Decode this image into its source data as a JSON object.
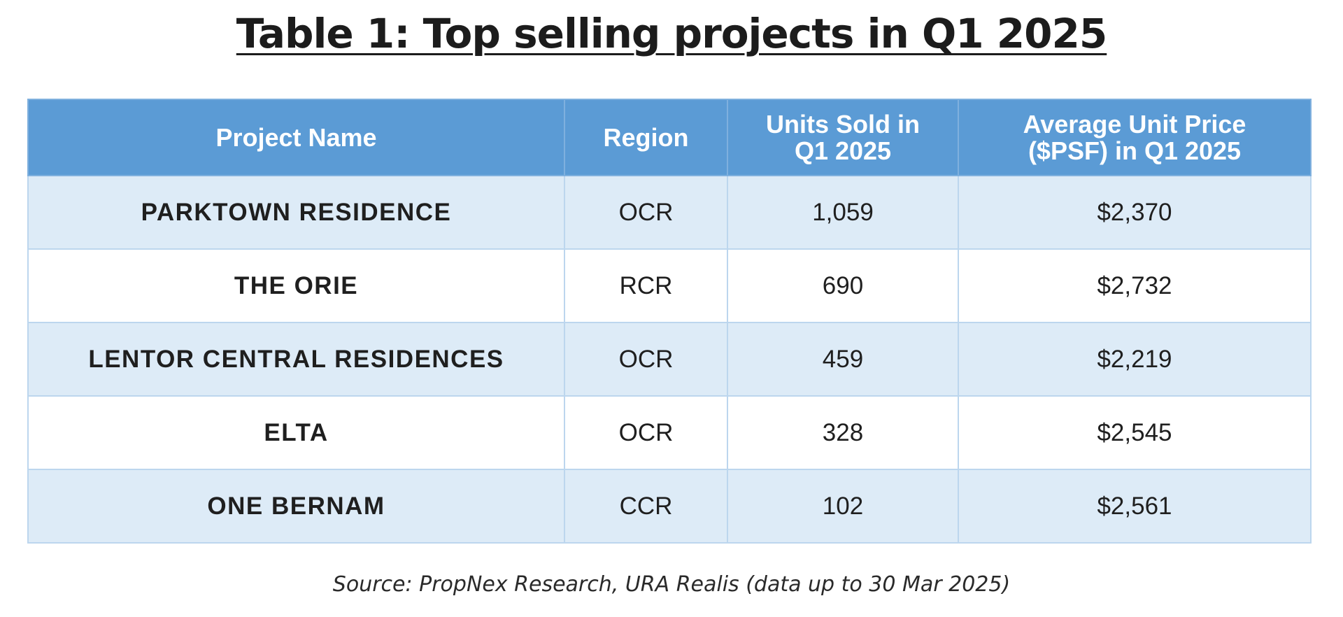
{
  "title": "Table 1: Top selling projects in Q1 2025",
  "table": {
    "headers": {
      "project_name": "Project Name",
      "region": "Region",
      "units_sold_line1": "Units Sold in",
      "units_sold_line2": "Q1 2025",
      "avg_price_line1": "Average Unit Price",
      "avg_price_line2": "($PSF) in Q1 2025"
    },
    "rows": [
      {
        "project_name": "PARKTOWN RESIDENCE",
        "region": "OCR",
        "units_sold": "1,059",
        "avg_price": "$2,370"
      },
      {
        "project_name": "THE ORIE",
        "region": "RCR",
        "units_sold": "690",
        "avg_price": "$2,732"
      },
      {
        "project_name": "LENTOR CENTRAL RESIDENCES",
        "region": "OCR",
        "units_sold": "459",
        "avg_price": "$2,219"
      },
      {
        "project_name": "ELTA",
        "region": "OCR",
        "units_sold": "328",
        "avg_price": "$2,545"
      },
      {
        "project_name": "ONE BERNAM",
        "region": "CCR",
        "units_sold": "102",
        "avg_price": "$2,561"
      }
    ]
  },
  "source": "Source: PropNex Research, URA Realis (data up to 30 Mar 2025)",
  "colors": {
    "header_bg": "#5b9bd5",
    "row_alt_bg": "#ddebf7",
    "row_plain_bg": "#ffffff",
    "border": "#bcd6ee"
  }
}
